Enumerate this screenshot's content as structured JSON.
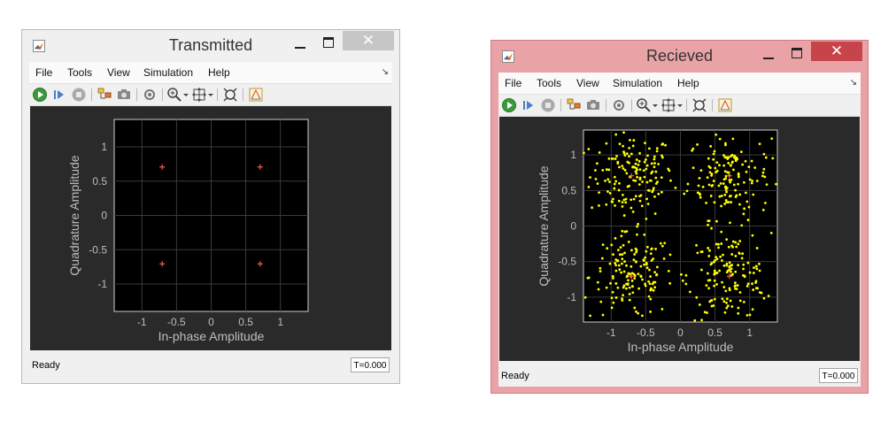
{
  "windows": [
    {
      "title": "Transmitted",
      "close_label": "✕",
      "menus": [
        "File",
        "Tools",
        "View",
        "Simulation",
        "Help"
      ],
      "menu_overflow": "↘",
      "status": "Ready",
      "time": "T=0.000",
      "titlebar_color": "#f0f0f0"
    },
    {
      "title": "Recieved",
      "close_label": "✕",
      "menus": [
        "File",
        "Tools",
        "View",
        "Simulation",
        "Help"
      ],
      "menu_overflow": "↘",
      "status": "Ready",
      "time": "T=0.000",
      "titlebar_color": "#e9a3a7"
    }
  ],
  "toolbar_icons": [
    "run-icon",
    "step-forward-icon",
    "stop-icon",
    "signal-hierarchy-icon",
    "snapshot-icon",
    "settings-icon",
    "zoom-in-icon",
    "fit-to-view-icon",
    "scale-axes-icon",
    "highlight-icon"
  ],
  "chart_data": [
    {
      "type": "scatter",
      "title": "",
      "xlabel": "In-phase Amplitude",
      "ylabel": "Quadrature Amplitude",
      "xlim": [
        -1.4,
        1.4
      ],
      "ylim": [
        -1.4,
        1.4
      ],
      "xticks": [
        "-1",
        "-0.5",
        "0",
        "0.5",
        "1"
      ],
      "yticks": [
        "1",
        "0.5",
        "0",
        "-0.5",
        "-1"
      ],
      "grid": true,
      "series": [
        {
          "name": "",
          "color": "#ff5a50",
          "marker": "plus",
          "x": [
            -0.707,
            0.707,
            -0.707,
            0.707
          ],
          "y": [
            0.707,
            0.707,
            -0.707,
            -0.707
          ]
        }
      ]
    },
    {
      "type": "scatter",
      "title": "",
      "xlabel": "In-phase Amplitude",
      "ylabel": "Quadrature Amplitude",
      "xlim": [
        -1.4,
        1.4
      ],
      "ylim": [
        -1.35,
        1.35
      ],
      "xticks": [
        "-1",
        "-0.5",
        "0",
        "0.5",
        "1"
      ],
      "yticks": [
        "1",
        "0.5",
        "0",
        "-0.5",
        "-1"
      ],
      "grid": true,
      "noise_sigma": 0.3,
      "points_per_symbol": 150,
      "series": [
        {
          "name": "",
          "color": "#ffff00",
          "marker": "dot",
          "description": "noisy received samples clustered around the 4 QPSK constellation points"
        },
        {
          "name": "",
          "color": "#ff5a50",
          "marker": "plus",
          "x": [
            -0.707,
            0.707,
            -0.707,
            0.707
          ],
          "y": [
            0.707,
            0.707,
            -0.707,
            -0.707
          ]
        }
      ]
    }
  ]
}
